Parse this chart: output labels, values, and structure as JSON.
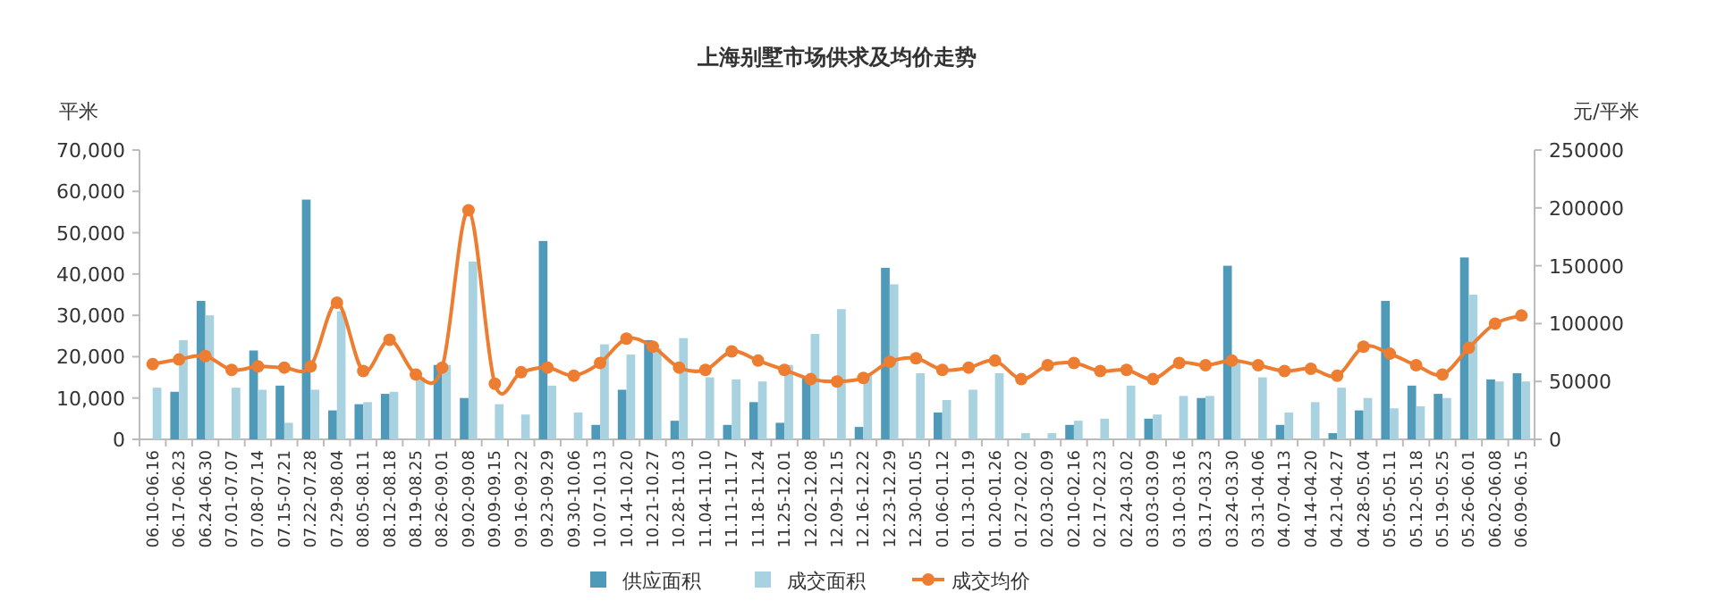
{
  "chart_data": {
    "type": "bar",
    "title": "上海别墅市场供求及均价走势",
    "ylabel": "平米",
    "y2label": "元/平米",
    "categories": [
      "06.10-06.16",
      "06.17-06.23",
      "06.24-06.30",
      "07.01-07.07",
      "07.08-07.14",
      "07.15-07.21",
      "07.22-07.28",
      "07.29-08.04",
      "08.05-08.11",
      "08.12-08.18",
      "08.19-08.25",
      "08.26-09.01",
      "09.02-09.08",
      "09.09-09.15",
      "09.16-09.22",
      "09.23-09.29",
      "09.30-10.06",
      "10.07-10.13",
      "10.14-10.20",
      "10.21-10.27",
      "10.28-11.03",
      "11.04-11.10",
      "11.11-11.17",
      "11.18-11.24",
      "11.25-12.01",
      "12.02-12.08",
      "12.09-12.15",
      "12.16-12.22",
      "12.23-12.29",
      "12.30-01.05",
      "01.06-01.12",
      "01.13-01.19",
      "01.20-01.26",
      "01.27-02.02",
      "02.03-02.09",
      "02.10-02.16",
      "02.17-02.23",
      "02.24-03.02",
      "03.03-03.09",
      "03.10-03.16",
      "03.17-03.23",
      "03.24-03.30",
      "03.31-04.06",
      "04.07-04.13",
      "04.14-04.20",
      "04.21-04.27",
      "04.28-05.04",
      "05.05-05.11",
      "05.12-05.18",
      "05.19-05.25",
      "05.26-06.01",
      "06.02-06.08",
      "06.09-06.15"
    ],
    "series": [
      {
        "name": "供应面积",
        "color": "#4f9ab8",
        "values": [
          null,
          11500,
          33500,
          null,
          21500,
          13000,
          58000,
          7000,
          8500,
          11000,
          null,
          18000,
          10000,
          null,
          null,
          48000,
          null,
          3500,
          12000,
          24000,
          4500,
          null,
          3500,
          9000,
          4000,
          15000,
          null,
          3000,
          41500,
          null,
          6500,
          null,
          null,
          null,
          null,
          3500,
          null,
          null,
          5000,
          null,
          10000,
          42000,
          null,
          3500,
          null,
          1500,
          7000,
          33500,
          13000,
          11000,
          44000,
          14500,
          16000
        ]
      },
      {
        "name": "成交面积",
        "color": "#a8d2e0",
        "values": [
          12500,
          24000,
          30000,
          12500,
          12000,
          4000,
          12000,
          31000,
          9000,
          11500,
          15000,
          18000,
          43000,
          8500,
          6000,
          13000,
          6500,
          23000,
          20500,
          22000,
          24500,
          15000,
          14500,
          14000,
          18000,
          25500,
          31500,
          16000,
          37500,
          16000,
          9500,
          12000,
          16000,
          1500,
          1500,
          4500,
          5000,
          13000,
          6000,
          10500,
          10500,
          19000,
          15000,
          6500,
          9000,
          12500,
          10000,
          7500,
          8000,
          10000,
          35000,
          14000,
          14000
        ]
      },
      {
        "name": "成交均价",
        "color": "#ed7d31",
        "type": "line",
        "axis": "y2",
        "values": [
          65000,
          69000,
          72000,
          60000,
          63000,
          62000,
          63000,
          118000,
          59000,
          86000,
          56000,
          62000,
          198000,
          48000,
          58000,
          62000,
          55000,
          66000,
          87000,
          80000,
          62000,
          60000,
          76000,
          68000,
          60000,
          52000,
          50000,
          53000,
          67000,
          70000,
          60000,
          62000,
          68000,
          52000,
          64000,
          66000,
          59000,
          60000,
          52000,
          66000,
          64000,
          68000,
          64000,
          59000,
          61000,
          55000,
          80000,
          74000,
          64000,
          56000,
          79000,
          100000,
          107000
        ]
      }
    ],
    "ylim": [
      0,
      70000
    ],
    "yticks": [
      {
        "value": 0,
        "label": "0"
      },
      {
        "value": 10000,
        "label": "10,000"
      },
      {
        "value": 20000,
        "label": "20,000"
      },
      {
        "value": 30000,
        "label": "30,000"
      },
      {
        "value": 40000,
        "label": "40,000"
      },
      {
        "value": 50000,
        "label": "50,000"
      },
      {
        "value": 60000,
        "label": "60,000"
      },
      {
        "value": 70000,
        "label": "70,000"
      }
    ],
    "y2lim": [
      0,
      250000
    ],
    "y2ticks": [
      0,
      50000,
      100000,
      150000,
      200000,
      250000
    ],
    "legend": "bottom",
    "marker": "circle"
  }
}
